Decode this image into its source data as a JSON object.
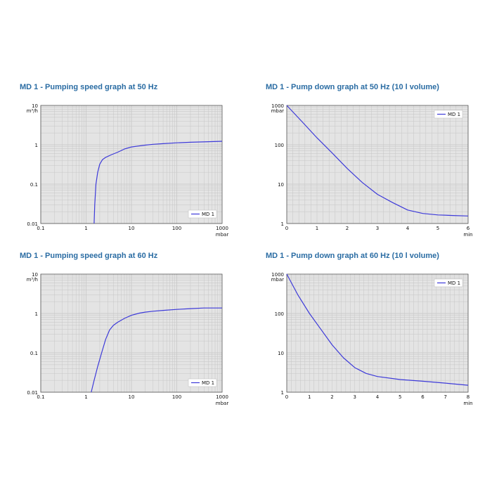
{
  "colors": {
    "line": "#3d3ad9",
    "title": "#2a6ca3",
    "plot_bg": "#e4e4e4",
    "grid": "#c6c6c6",
    "frame": "#555555"
  },
  "chart_data": [
    {
      "id": "ps50",
      "type": "line",
      "title": "MD 1 - Pumping speed graph at 50 Hz",
      "x_scale": "log",
      "y_scale": "log",
      "xlim": [
        0.1,
        1000
      ],
      "ylim": [
        0.01,
        10
      ],
      "x_ticks": [
        0.1,
        1,
        10,
        100,
        1000
      ],
      "x_tick_labels": [
        "0.1",
        "1",
        "10",
        "100",
        "1000"
      ],
      "y_ticks": [
        0.01,
        0.1,
        1,
        10
      ],
      "y_tick_labels": [
        "0.01",
        "0.1",
        "1",
        "10"
      ],
      "xlabel": "mbar",
      "ylabel": "m³/h",
      "legend": "bottom-right",
      "grid": true,
      "series": [
        {
          "name": "MD 1",
          "x": [
            1.5,
            1.55,
            1.65,
            1.8,
            2.0,
            2.3,
            2.7,
            3.5,
            5,
            7,
            10,
            14,
            20,
            30,
            50,
            100,
            200,
            500,
            1000
          ],
          "y": [
            0.01,
            0.03,
            0.1,
            0.2,
            0.32,
            0.42,
            0.48,
            0.55,
            0.65,
            0.78,
            0.88,
            0.93,
            0.98,
            1.03,
            1.07,
            1.12,
            1.16,
            1.2,
            1.23
          ]
        }
      ]
    },
    {
      "id": "pd50",
      "type": "line",
      "title": "MD 1 - Pump down graph at 50 Hz (10 l volume)",
      "x_scale": "linear",
      "y_scale": "log",
      "xlim": [
        0,
        6
      ],
      "ylim": [
        1,
        1000
      ],
      "x_ticks": [
        0,
        1,
        2,
        3,
        4,
        5,
        6
      ],
      "x_tick_labels": [
        "0",
        "1",
        "2",
        "3",
        "4",
        "5",
        "6"
      ],
      "y_ticks": [
        1,
        10,
        100,
        1000
      ],
      "y_tick_labels": [
        "1",
        "10",
        "100",
        "1000"
      ],
      "xlabel": "min",
      "ylabel": "mbar",
      "legend": "top-right",
      "grid": true,
      "series": [
        {
          "name": "MD 1",
          "x": [
            0,
            0.5,
            1,
            1.5,
            2,
            2.5,
            3,
            3.5,
            4,
            4.5,
            5,
            5.5,
            6
          ],
          "y": [
            1000,
            390,
            150,
            62,
            25,
            11,
            5.5,
            3.4,
            2.2,
            1.8,
            1.65,
            1.6,
            1.55
          ]
        }
      ]
    },
    {
      "id": "ps60",
      "type": "line",
      "title": "MD 1 - Pumping speed graph at 60 Hz",
      "x_scale": "log",
      "y_scale": "log",
      "xlim": [
        0.1,
        1000
      ],
      "ylim": [
        0.01,
        10
      ],
      "x_ticks": [
        0.1,
        1,
        10,
        100,
        1000
      ],
      "x_tick_labels": [
        "0.1",
        "1",
        "10",
        "100",
        "1000"
      ],
      "y_ticks": [
        0.01,
        0.1,
        1,
        10
      ],
      "y_tick_labels": [
        "0.01",
        "0.1",
        "1",
        "10"
      ],
      "xlabel": "mbar",
      "ylabel": "m³/h",
      "legend": "bottom-right",
      "grid": true,
      "series": [
        {
          "name": "MD 1",
          "x": [
            1.3,
            1.5,
            1.8,
            2.2,
            2.7,
            3.3,
            4,
            5,
            7,
            10,
            15,
            20,
            30,
            50,
            100,
            200,
            400,
            1000
          ],
          "y": [
            0.01,
            0.02,
            0.045,
            0.1,
            0.22,
            0.38,
            0.5,
            0.6,
            0.75,
            0.9,
            1.02,
            1.08,
            1.14,
            1.2,
            1.27,
            1.33,
            1.38,
            1.38
          ]
        }
      ]
    },
    {
      "id": "pd60",
      "type": "line",
      "title": "MD 1 - Pump down graph at 60 Hz (10 l volume)",
      "x_scale": "linear",
      "y_scale": "log",
      "xlim": [
        0,
        8
      ],
      "ylim": [
        1,
        1000
      ],
      "x_ticks": [
        0,
        1,
        2,
        3,
        4,
        5,
        6,
        7,
        8
      ],
      "x_tick_labels": [
        "0",
        "1",
        "2",
        "3",
        "4",
        "5",
        "6",
        "7",
        "8"
      ],
      "y_ticks": [
        1,
        10,
        100,
        1000
      ],
      "y_tick_labels": [
        "1",
        "10",
        "100",
        "1000"
      ],
      "xlabel": "min",
      "ylabel": "mbar",
      "legend": "top-right",
      "grid": true,
      "series": [
        {
          "name": "MD 1",
          "x": [
            0,
            0.5,
            1,
            1.5,
            2,
            2.5,
            3,
            3.5,
            4,
            5,
            6,
            7,
            8
          ],
          "y": [
            1000,
            290,
            100,
            40,
            16,
            7.5,
            4.2,
            3.0,
            2.5,
            2.1,
            1.9,
            1.7,
            1.5
          ]
        }
      ]
    }
  ]
}
